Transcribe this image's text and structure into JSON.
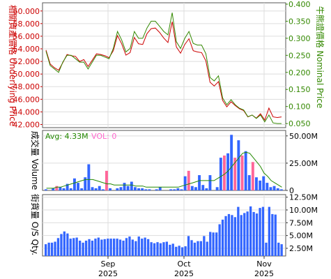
{
  "chart_data": [
    {
      "type": "line",
      "panel": "price",
      "left_axis_label": "相關資產價格 Underlying Price",
      "right_axis_label": "牛熊證價格 Nominal Price",
      "left_color": "#cc0000",
      "right_color": "#338800",
      "left_ticks": [
        "60.000",
        "58.000",
        "56.000",
        "54.000",
        "52.000",
        "50.000",
        "48.000",
        "46.000",
        "44.000",
        "42.000"
      ],
      "left_tick_values": [
        60,
        58,
        56,
        54,
        52,
        50,
        48,
        46,
        44,
        42
      ],
      "right_ticks": [
        "0.400",
        "0.350",
        "0.300",
        "0.250",
        "0.200",
        "0.150",
        "0.100",
        "0.050"
      ],
      "right_tick_values": [
        0.4,
        0.35,
        0.3,
        0.25,
        0.2,
        0.15,
        0.1,
        0.05
      ],
      "left_ylim": [
        41.5,
        61.3
      ],
      "right_ylim": [
        0.038,
        0.404
      ],
      "series": [
        {
          "axis": "left",
          "color": "#cc0000",
          "values": [
            53.8,
            51.6,
            51.0,
            50.6,
            51.8,
            53.1,
            52.9,
            52.8,
            52.0,
            52.3,
            51.2,
            52.2,
            53.2,
            53.1,
            52.9,
            52.6,
            53.7,
            56.1,
            54.8,
            53.0,
            53.4,
            55.8,
            54.8,
            54.7,
            56.4,
            57.2,
            57.3,
            56.6,
            55.7,
            55.0,
            58.3,
            54.3,
            53.3,
            54.7,
            55.6,
            53.7,
            53.5,
            53.4,
            52.1,
            48.7,
            48.1,
            48.8,
            45.8,
            44.8,
            45.6,
            45.0,
            44.5,
            44.2,
            43.2,
            43.5,
            43.0,
            43.7,
            42.7,
            44.6,
            43.2,
            43.1,
            43.2
          ]
        },
        {
          "axis": "right",
          "color": "#338800",
          "values": [
            0.262,
            0.22,
            0.21,
            0.2,
            0.23,
            0.25,
            0.25,
            0.24,
            0.23,
            0.23,
            0.21,
            0.23,
            0.25,
            0.25,
            0.245,
            0.24,
            0.27,
            0.32,
            0.295,
            0.26,
            0.27,
            0.32,
            0.3,
            0.3,
            0.33,
            0.35,
            0.35,
            0.335,
            0.32,
            0.31,
            0.375,
            0.29,
            0.27,
            0.3,
            0.32,
            0.285,
            0.28,
            0.28,
            0.255,
            0.185,
            0.175,
            0.19,
            0.125,
            0.105,
            0.12,
            0.105,
            0.095,
            0.09,
            0.07,
            0.075,
            0.065,
            0.075,
            0.055,
            0.075,
            0.052,
            0.05,
            0.05
          ]
        }
      ]
    },
    {
      "type": "bar",
      "panel": "volume",
      "axis_label": "成交量 Volume",
      "avg_label": "Avg: 4.33M",
      "vol_label": "VOL: 0",
      "avg_color": "#228800",
      "vol_color": "#ff66cc",
      "up_color": "#ff6699",
      "down_color": "#3366ff",
      "ticks": [
        "50.00M",
        "25.00M",
        "0"
      ],
      "tick_values": [
        50,
        25,
        0
      ],
      "ylim": [
        0,
        55
      ],
      "values": [
        1,
        0,
        2,
        4,
        3,
        2,
        6,
        2,
        11,
        7,
        2,
        12,
        24,
        3,
        2,
        4,
        1,
        18,
        2,
        0,
        2,
        3,
        7,
        4,
        8,
        3,
        2,
        2,
        1,
        1,
        0,
        1,
        3,
        0,
        0,
        1,
        1,
        2,
        1,
        13,
        18,
        4,
        3,
        14,
        5,
        2,
        14,
        0,
        3,
        30,
        32,
        34,
        51,
        30,
        46,
        32,
        36,
        14,
        26,
        12,
        9,
        13,
        7,
        3,
        4,
        2,
        1
      ],
      "up": [
        0,
        0,
        0,
        1,
        0,
        0,
        0,
        0,
        0,
        0,
        0,
        0,
        0,
        0,
        0,
        0,
        0,
        1,
        0,
        0,
        0,
        0,
        0,
        0,
        0,
        0,
        0,
        0,
        0,
        0,
        0,
        0,
        0,
        0,
        0,
        0,
        0,
        0,
        0,
        0,
        1,
        0,
        0,
        0,
        0,
        0,
        0,
        0,
        0,
        0,
        1,
        0,
        0,
        1,
        0,
        1,
        0,
        0,
        1,
        0,
        0,
        0,
        0,
        0,
        0,
        0,
        0
      ],
      "avg_values": [
        2,
        2,
        2,
        3,
        3,
        4,
        5,
        6,
        7,
        8,
        9,
        10,
        10,
        10,
        9,
        8,
        7,
        6,
        6,
        5,
        5,
        5,
        5,
        5,
        5,
        4,
        4,
        4,
        3,
        3,
        3,
        3,
        3,
        3,
        3,
        3,
        3,
        3,
        4,
        5,
        6,
        7,
        8,
        9,
        9,
        9,
        9,
        9,
        11,
        13,
        15,
        18,
        22,
        26,
        30,
        34,
        35,
        34,
        30,
        26,
        22,
        16,
        13,
        9,
        7,
        5,
        3
      ]
    },
    {
      "type": "bar",
      "panel": "outstanding",
      "axis_label": "街貨量 O/S Qty.",
      "bar_color": "#3366ff",
      "ticks": [
        "12.50M",
        "10.00M",
        "7.50M",
        "5.00M",
        "2.50M"
      ],
      "tick_values": [
        12.5,
        10,
        7.5,
        5,
        2.5
      ],
      "ylim": [
        1.0,
        13.0
      ],
      "x_ticks": [
        {
          "label": "Sep",
          "year": "2025",
          "index": 21
        },
        {
          "label": "Oct",
          "year": "2025",
          "index": 46
        },
        {
          "label": "Nov",
          "year": "2025",
          "index": 72
        }
      ],
      "values": [
        3.3,
        3.6,
        3.6,
        3.8,
        4.5,
        5.3,
        5.8,
        5.4,
        4.4,
        4.5,
        4.6,
        4.0,
        3.6,
        4.0,
        4.3,
        4.0,
        4.4,
        4.6,
        4.2,
        4.3,
        4.4,
        4.4,
        4.4,
        4.4,
        4.2,
        4.0,
        4.5,
        4.8,
        4.2,
        3.9,
        4.8,
        4.4,
        4.6,
        4.3,
        3.7,
        3.5,
        3.7,
        3.5,
        3.7,
        3.8,
        3.2,
        3.4,
        2.8,
        3.0,
        2.7,
        2.9,
        4.9,
        4.1,
        3.6,
        3.9,
        3.9,
        4.9,
        3.8,
        5.7,
        5.6,
        5.6,
        7.2,
        8.1,
        8.8,
        9.2,
        9.0,
        8.6,
        10.6,
        9.0,
        9.4,
        9.7,
        10.7,
        9.6,
        9.3,
        10.4,
        10.6,
        3.6,
        10.6,
        9.2,
        9.1,
        3.6,
        3.3
      ]
    }
  ]
}
